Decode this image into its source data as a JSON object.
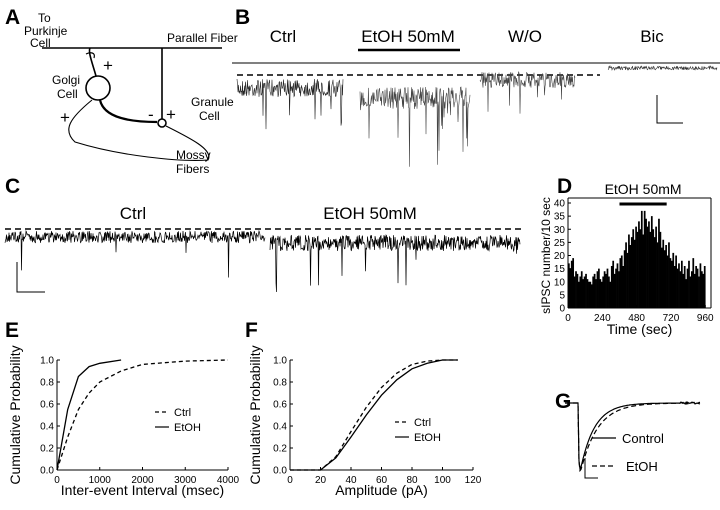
{
  "panel_labels": [
    "A",
    "B",
    "C",
    "D",
    "E",
    "F",
    "G"
  ],
  "diagram": {
    "purkinje": [
      "To",
      "Purkinje",
      "Cell"
    ],
    "parallel": "Parallel Fiber",
    "golgi": [
      "Golgi",
      "Cell"
    ],
    "granule": [
      "Granule",
      "Cell"
    ],
    "mossy": [
      "Mossy",
      "Fibers"
    ],
    "signs": [
      "+",
      "+",
      "-",
      "+"
    ]
  },
  "traces_b": {
    "labels": [
      "Ctrl",
      "EtOH 50mM",
      "W/O",
      "Bic"
    ]
  },
  "traces_c": {
    "labels": [
      "Ctrl",
      "EtOH 50mM"
    ]
  },
  "traces_g": {
    "legend": [
      "Control",
      "EtOH"
    ]
  },
  "chart_data": [
    {
      "type": "histogram",
      "annotation": {
        "text": "EtOH 50mM",
        "x": [
          360,
          690
        ]
      },
      "xlabel": "Time (sec)",
      "ylabel": "sIPSC number/10 sec",
      "color": "#000000",
      "box": true,
      "bins": [
        0,
        10,
        20,
        30,
        40,
        50,
        60,
        70,
        80,
        90,
        100,
        110,
        120,
        130,
        140,
        150,
        160,
        170,
        180,
        190,
        200,
        210,
        220,
        230,
        240,
        250,
        260,
        270,
        280,
        290,
        300,
        310,
        320,
        330,
        340,
        350,
        360,
        370,
        380,
        390,
        400,
        410,
        420,
        430,
        440,
        450,
        460,
        470,
        480,
        490,
        500,
        510,
        520,
        530,
        540,
        550,
        560,
        570,
        580,
        590,
        600,
        610,
        620,
        630,
        640,
        650,
        660,
        670,
        680,
        690,
        700,
        710,
        720,
        730,
        740,
        750,
        760,
        770,
        780,
        790,
        800,
        810,
        820,
        830,
        840,
        850,
        860,
        870,
        880,
        890,
        900,
        910,
        920,
        930,
        940,
        950,
        960
      ],
      "values": [
        17,
        15,
        18,
        19,
        12,
        14,
        13,
        10,
        12,
        14,
        11,
        12,
        13,
        11,
        10,
        10,
        9,
        12,
        13,
        11,
        14,
        15,
        11,
        10,
        12,
        14,
        13,
        15,
        12,
        10,
        16,
        18,
        13,
        15,
        17,
        14,
        19,
        20,
        16,
        22,
        25,
        21,
        28,
        24,
        27,
        30,
        26,
        31,
        29,
        33,
        30,
        37,
        28,
        37,
        34,
        31,
        33,
        29,
        35,
        30,
        27,
        31,
        25,
        34,
        29,
        23,
        26,
        22,
        24,
        20,
        25,
        19,
        18,
        21,
        16,
        20,
        15,
        17,
        14,
        18,
        13,
        16,
        11,
        15,
        18,
        12,
        14,
        19,
        13,
        16,
        15,
        12,
        17,
        14,
        13,
        16
      ],
      "xlim": [
        0,
        1000
      ],
      "xticks": [
        0,
        240,
        480,
        720,
        960
      ],
      "ylim": [
        0,
        40
      ],
      "yticks": [
        0,
        5,
        10,
        15,
        20,
        25,
        30,
        35,
        40
      ]
    },
    {
      "type": "line",
      "xlabel": "Inter-event Interval (msec)",
      "ylabel": "Cumulative Probability",
      "legend": "right",
      "x": [
        0,
        100,
        250,
        500,
        750,
        1000,
        1500,
        2000,
        3000,
        4000
      ],
      "series": [
        {
          "name": "Ctrl",
          "color": "#000000",
          "line_style": "dashed",
          "values": [
            0,
            0.12,
            0.3,
            0.55,
            0.7,
            0.8,
            0.9,
            0.96,
            0.99,
            1.0
          ]
        },
        {
          "name": "EtOH",
          "color": "#000000",
          "line_style": "solid",
          "values": [
            0,
            0.22,
            0.55,
            0.85,
            0.94,
            0.97,
            1.0,
            null,
            null,
            null
          ]
        }
      ],
      "xlim": [
        0,
        4000
      ],
      "xticks": [
        0,
        1000,
        2000,
        3000,
        4000
      ],
      "ylim": [
        0,
        1
      ],
      "yticks": [
        {
          "value": 0,
          "label": "0.0"
        },
        0.2,
        0.4,
        0.6,
        0.8,
        {
          "value": 1,
          "label": "1.0"
        }
      ]
    },
    {
      "type": "line",
      "xlabel": "Amplitude (pA)",
      "ylabel": "Cumulative Probability",
      "legend": "right",
      "x": [
        0,
        10,
        20,
        30,
        40,
        50,
        60,
        70,
        80,
        90,
        100,
        110
      ],
      "series": [
        {
          "name": "Ctrl",
          "color": "#000000",
          "line_style": "dashed",
          "values": [
            0,
            0,
            0,
            0.12,
            0.35,
            0.57,
            0.75,
            0.88,
            0.96,
            0.99,
            1.0,
            1.0
          ]
        },
        {
          "name": "EtOH",
          "color": "#000000",
          "line_style": "solid",
          "values": [
            0,
            0,
            0,
            0.11,
            0.3,
            0.5,
            0.68,
            0.82,
            0.92,
            0.97,
            1.0,
            1.0
          ]
        }
      ],
      "xlim": [
        0,
        120
      ],
      "xticks": [
        0,
        20,
        40,
        60,
        80,
        100,
        120
      ],
      "ylim": [
        0,
        1
      ],
      "yticks": [
        {
          "value": 0,
          "label": "0.0"
        },
        0.2,
        0.4,
        0.6,
        0.8,
        {
          "value": 1,
          "label": "1.0"
        }
      ]
    }
  ]
}
